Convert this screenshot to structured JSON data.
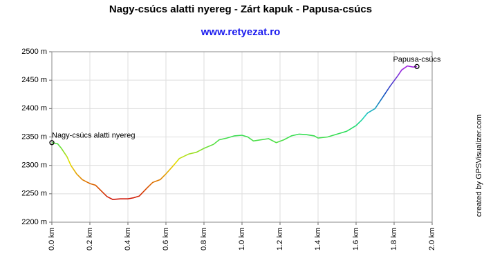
{
  "chart_data": {
    "type": "line",
    "title": "Nagy-csúcs alatti nyereg - Zárt kapuk - Papusa-csúcs",
    "subtitle": "www.retyezat.ro",
    "credit": "created by GPSVisualizer.com",
    "annotations": [
      "Nagy-csúcs alatti nyereg",
      "Papusa-csúcs"
    ],
    "x": [
      0.0,
      0.03,
      0.05,
      0.08,
      0.1,
      0.13,
      0.16,
      0.2,
      0.23,
      0.26,
      0.29,
      0.32,
      0.36,
      0.4,
      0.43,
      0.46,
      0.5,
      0.53,
      0.57,
      0.6,
      0.64,
      0.67,
      0.72,
      0.76,
      0.8,
      0.85,
      0.88,
      0.92,
      0.96,
      1.0,
      1.03,
      1.06,
      1.1,
      1.14,
      1.18,
      1.22,
      1.26,
      1.3,
      1.34,
      1.38,
      1.4,
      1.45,
      1.5,
      1.55,
      1.6,
      1.63,
      1.66,
      1.7,
      1.74,
      1.78,
      1.82,
      1.84,
      1.87,
      1.9,
      1.92
    ],
    "values": [
      2340,
      2338,
      2330,
      2315,
      2300,
      2285,
      2275,
      2268,
      2265,
      2255,
      2245,
      2240,
      2241,
      2241,
      2243,
      2246,
      2260,
      2270,
      2275,
      2285,
      2300,
      2312,
      2320,
      2323,
      2330,
      2337,
      2345,
      2348,
      2352,
      2353,
      2350,
      2343,
      2345,
      2347,
      2340,
      2345,
      2352,
      2355,
      2354,
      2352,
      2348,
      2350,
      2355,
      2360,
      2370,
      2380,
      2392,
      2400,
      2420,
      2440,
      2458,
      2468,
      2475,
      2473,
      2474
    ],
    "xlim": [
      0,
      2
    ],
    "xticks": [
      {
        "value": 0,
        "label": "0.0 km"
      },
      {
        "value": 0.2,
        "label": "0.2 km"
      },
      {
        "value": 0.4,
        "label": "0.4 km"
      },
      {
        "value": 0.6,
        "label": "0.6 km"
      },
      {
        "value": 0.8,
        "label": "0.8 km"
      },
      {
        "value": 1,
        "label": "1.0 km"
      },
      {
        "value": 1.2,
        "label": "1.2 km"
      },
      {
        "value": 1.4,
        "label": "1.4 km"
      },
      {
        "value": 1.6,
        "label": "1.6 km"
      },
      {
        "value": 1.8,
        "label": "1.8 km"
      },
      {
        "value": 2,
        "label": "2.0 km"
      }
    ],
    "ylim": [
      2200,
      2500
    ],
    "yticks": [
      {
        "value": 2200,
        "label": "2200 m"
      },
      {
        "value": 2250,
        "label": "2250 m"
      },
      {
        "value": 2300,
        "label": "2300 m"
      },
      {
        "value": 2350,
        "label": "2350 m"
      },
      {
        "value": 2400,
        "label": "2400 m"
      },
      {
        "value": 2450,
        "label": "2450 m"
      },
      {
        "value": 2500,
        "label": "2500 m"
      }
    ],
    "grid": true
  }
}
